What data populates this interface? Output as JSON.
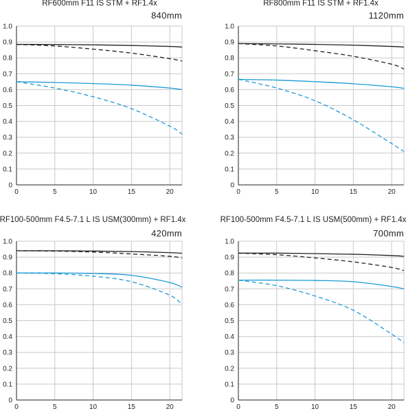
{
  "colors": {
    "black_series": "#231f20",
    "blue_series": "#1a9ad6",
    "grid": "#c8c8c8",
    "axis": "#222222"
  },
  "chart_data": [
    {
      "type": "line",
      "title": "RF600mm F11 IS STM + RF1.4x",
      "focal_label": "840mm",
      "xlim": [
        0,
        21.6
      ],
      "ylim": [
        0,
        1.0
      ],
      "xticks": [
        0,
        5,
        10,
        15,
        20
      ],
      "yticks": [
        0,
        0.1,
        0.2,
        0.3,
        0.4,
        0.5,
        0.6,
        0.7,
        0.8,
        0.9,
        1.0
      ],
      "ytick_labels": [
        "0",
        "0.1",
        "0.2",
        "0.3",
        "0.4",
        "0.5",
        "0.6",
        "0.7",
        "0.8",
        "0.9",
        "1.0"
      ],
      "grid": true,
      "series": [
        {
          "color": "black",
          "style": "solid",
          "x": [
            0,
            5,
            10,
            15,
            20,
            21.6
          ],
          "y": [
            0.885,
            0.884,
            0.882,
            0.878,
            0.872,
            0.868
          ]
        },
        {
          "color": "black",
          "style": "dashed",
          "x": [
            0,
            5,
            10,
            15,
            20,
            21.6
          ],
          "y": [
            0.885,
            0.875,
            0.855,
            0.83,
            0.795,
            0.78
          ]
        },
        {
          "color": "blue",
          "style": "solid",
          "x": [
            0,
            5,
            10,
            15,
            20,
            21.6
          ],
          "y": [
            0.65,
            0.645,
            0.638,
            0.628,
            0.61,
            0.6
          ]
        },
        {
          "color": "blue",
          "style": "dashed",
          "x": [
            0,
            5,
            10,
            15,
            20,
            21.6
          ],
          "y": [
            0.65,
            0.61,
            0.555,
            0.48,
            0.37,
            0.32
          ]
        }
      ]
    },
    {
      "type": "line",
      "title": "RF800mm F11 IS STM + RF1.4x",
      "focal_label": "1120mm",
      "xlim": [
        0,
        21.6
      ],
      "ylim": [
        0,
        1.0
      ],
      "xticks": [
        0,
        5,
        10,
        15,
        20
      ],
      "yticks": [
        0,
        0.1,
        0.2,
        0.3,
        0.4,
        0.5,
        0.6,
        0.7,
        0.8,
        0.9,
        1.0
      ],
      "ytick_labels": [
        "0",
        "0.1",
        "0.2",
        "0.3",
        "0.4",
        "0.5",
        "0.6",
        "0.7",
        "0.8",
        "0.9",
        "1.0"
      ],
      "grid": true,
      "series": [
        {
          "color": "black",
          "style": "solid",
          "x": [
            0,
            5,
            10,
            15,
            20,
            21.6
          ],
          "y": [
            0.89,
            0.888,
            0.885,
            0.88,
            0.872,
            0.868
          ]
        },
        {
          "color": "black",
          "style": "dashed",
          "x": [
            0,
            5,
            10,
            15,
            20,
            21.6
          ],
          "y": [
            0.89,
            0.875,
            0.845,
            0.81,
            0.76,
            0.73
          ]
        },
        {
          "color": "blue",
          "style": "solid",
          "x": [
            0,
            5,
            10,
            15,
            20,
            21.6
          ],
          "y": [
            0.665,
            0.66,
            0.65,
            0.637,
            0.618,
            0.608
          ]
        },
        {
          "color": "blue",
          "style": "dashed",
          "x": [
            0,
            5,
            10,
            15,
            20,
            21.6
          ],
          "y": [
            0.665,
            0.61,
            0.53,
            0.41,
            0.26,
            0.21
          ]
        }
      ]
    },
    {
      "type": "line",
      "title": "RF100-500mm F4.5-7.1 L IS USM(300mm) + RF1.4x",
      "focal_label": "420mm",
      "xlim": [
        0,
        21.6
      ],
      "ylim": [
        0,
        1.0
      ],
      "xticks": [
        0,
        5,
        10,
        15,
        20
      ],
      "yticks": [
        0,
        0.1,
        0.2,
        0.3,
        0.4,
        0.5,
        0.6,
        0.7,
        0.8,
        0.9,
        1.0
      ],
      "ytick_labels": [
        "0",
        "0.1",
        "0.2",
        "0.3",
        "0.4",
        "0.5",
        "0.6",
        "0.7",
        "0.8",
        "0.9",
        "1.0"
      ],
      "grid": true,
      "series": [
        {
          "color": "black",
          "style": "solid",
          "x": [
            0,
            5,
            10,
            15,
            20,
            21.6
          ],
          "y": [
            0.94,
            0.94,
            0.938,
            0.935,
            0.928,
            0.924
          ]
        },
        {
          "color": "black",
          "style": "dashed",
          "x": [
            0,
            5,
            10,
            15,
            20,
            21.6
          ],
          "y": [
            0.94,
            0.938,
            0.932,
            0.92,
            0.905,
            0.895
          ]
        },
        {
          "color": "blue",
          "style": "solid",
          "x": [
            0,
            5,
            10,
            15,
            20,
            21.6
          ],
          "y": [
            0.8,
            0.8,
            0.797,
            0.785,
            0.74,
            0.71
          ]
        },
        {
          "color": "blue",
          "style": "dashed",
          "x": [
            0,
            5,
            10,
            15,
            20,
            21.6
          ],
          "y": [
            0.8,
            0.795,
            0.78,
            0.745,
            0.66,
            0.6
          ]
        }
      ]
    },
    {
      "type": "line",
      "title": "RF100-500mm F4.5-7.1 L IS USM(500mm) + RF1.4x",
      "focal_label": "700mm",
      "xlim": [
        0,
        21.6
      ],
      "ylim": [
        0,
        1.0
      ],
      "xticks": [
        0,
        5,
        10,
        15,
        20
      ],
      "yticks": [
        0,
        0.1,
        0.2,
        0.3,
        0.4,
        0.5,
        0.6,
        0.7,
        0.8,
        0.9,
        1.0
      ],
      "ytick_labels": [
        "0",
        "0.1",
        "0.2",
        "0.3",
        "0.4",
        "0.5",
        "0.6",
        "0.7",
        "0.8",
        "0.9",
        "1.0"
      ],
      "grid": true,
      "series": [
        {
          "color": "black",
          "style": "solid",
          "x": [
            0,
            5,
            10,
            15,
            20,
            21.6
          ],
          "y": [
            0.925,
            0.925,
            0.922,
            0.918,
            0.91,
            0.905
          ]
        },
        {
          "color": "black",
          "style": "dashed",
          "x": [
            0,
            5,
            10,
            15,
            20,
            21.6
          ],
          "y": [
            0.925,
            0.915,
            0.895,
            0.87,
            0.835,
            0.815
          ]
        },
        {
          "color": "blue",
          "style": "solid",
          "x": [
            0,
            5,
            10,
            15,
            20,
            21.6
          ],
          "y": [
            0.755,
            0.755,
            0.753,
            0.745,
            0.715,
            0.7
          ]
        },
        {
          "color": "blue",
          "style": "dashed",
          "x": [
            0,
            5,
            10,
            15,
            20,
            21.6
          ],
          "y": [
            0.755,
            0.72,
            0.655,
            0.565,
            0.415,
            0.36
          ]
        }
      ]
    }
  ]
}
